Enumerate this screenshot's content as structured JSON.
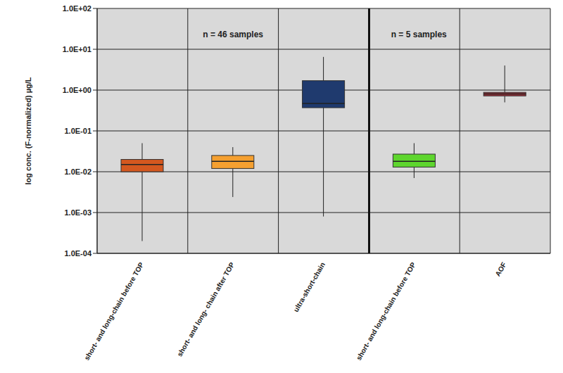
{
  "chart_data": {
    "type": "box",
    "ylabel": "log conc. (F-normalized) µg/L",
    "categories": [
      "short- and long-chain before TOP",
      "short- and long- chain after TOP",
      "ultra-short-chain",
      "short- and long-chain before TOP",
      "AOF"
    ],
    "min": [
      0.0002,
      0.0024,
      0.0008,
      0.007,
      0.5
    ],
    "q1": [
      0.01,
      0.012,
      0.37,
      0.013,
      0.72
    ],
    "median": [
      0.015,
      0.018,
      0.47,
      0.018,
      0.8
    ],
    "q3": [
      0.02,
      0.025,
      1.7,
      0.027,
      0.88
    ],
    "max": [
      0.05,
      0.04,
      6.5,
      0.05,
      4.0
    ],
    "colors": [
      "#d5581f",
      "#f5a030",
      "#1f3a6e",
      "#5ed62e",
      "#a0303a"
    ],
    "annotations": [
      "n = 46 samples",
      "n = 5 samples"
    ],
    "log": "y",
    "grid": true,
    "ylim": [
      0.0001,
      100
    ],
    "yticks": [
      {
        "value": 0.0001,
        "label": "1.0E-04"
      },
      {
        "value": 0.001,
        "label": "1.0E-03"
      },
      {
        "value": 0.01,
        "label": "1.0E-02"
      },
      {
        "value": 0.1,
        "label": "1.0E-01"
      },
      {
        "value": 1,
        "label": "1.0E+00"
      },
      {
        "value": 10,
        "label": "1.0E+01"
      },
      {
        "value": 100,
        "label": "1.0E+02"
      }
    ]
  }
}
